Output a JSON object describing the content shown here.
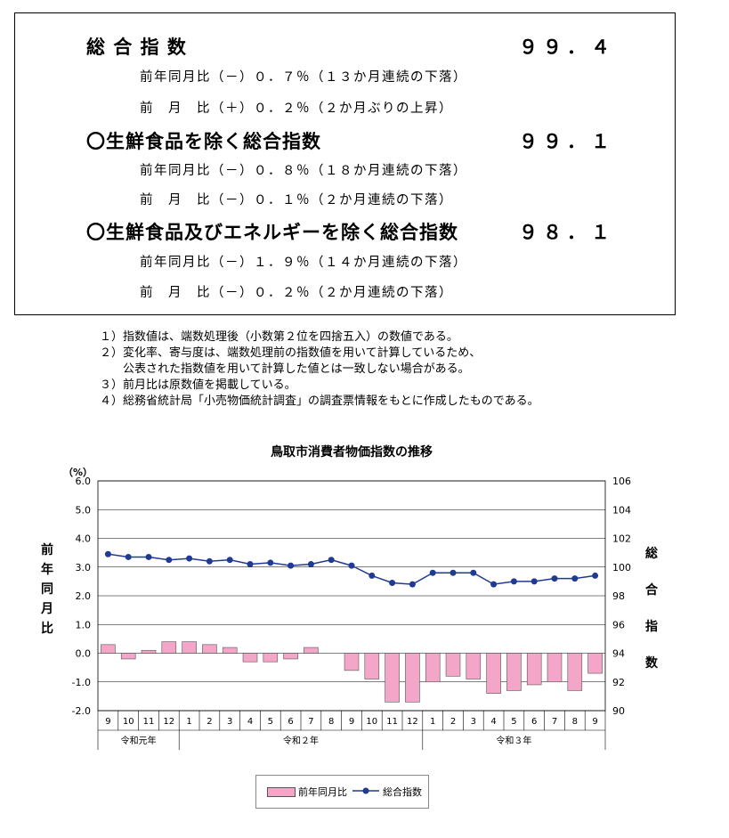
{
  "summary": {
    "blocks": [
      {
        "title": "総 合 指 数",
        "value": "９９．４",
        "lines": [
          "前年同月比（－）０．７％（１３か月連続の下落）",
          "前　月　比（＋）０．２％（２か月ぶりの上昇）"
        ]
      },
      {
        "title": "〇生鮮食品を除く総合指数",
        "value": "９９．１",
        "lines": [
          "前年同月比（－）０．８％（１８か月連続の下落）",
          "前　月　比（－）０．１％（２か月連続の下落）"
        ]
      },
      {
        "title": "〇生鮮食品及びエネルギーを除く総合指数",
        "value": "９８．１",
        "lines": [
          "前年同月比（－）１．９％（１４か月連続の下落）",
          "前　月　比（－）０．２％（２か月連続の下落）"
        ]
      }
    ]
  },
  "notes": [
    "１）指数値は、端数処理後（小数第２位を四捨五入）の数値である。",
    "２）変化率、寄与度は、端数処理前の指数値を用いて計算しているため、",
    "　　公表された指数値を用いて計算した値とは一致しない場合がある。",
    "３）前月比は原数値を掲載している。",
    "４）総務省統計局「小売物価統計調査」の調査票情報をもとに作成したものである。"
  ],
  "chart_data": {
    "type": "bar",
    "title": "鳥取市消費者物価指数の推移",
    "categories": [
      "9",
      "10",
      "11",
      "12",
      "1",
      "2",
      "3",
      "4",
      "5",
      "6",
      "7",
      "8",
      "9",
      "10",
      "11",
      "12",
      "1",
      "2",
      "3",
      "4",
      "5",
      "6",
      "7",
      "8",
      "9"
    ],
    "year_groups": [
      {
        "label": "令和元年",
        "count": 4
      },
      {
        "label": "令和２年",
        "count": 12
      },
      {
        "label": "令和３年",
        "count": 9
      }
    ],
    "left_axis": {
      "unit": "（%）",
      "label": "前年同月比",
      "ylim": [
        -2.0,
        6.0
      ],
      "ticks": [
        "6.0",
        "5.0",
        "4.0",
        "3.0",
        "2.0",
        "1.0",
        "0.0",
        "-1.0",
        "-2.0"
      ]
    },
    "right_axis": {
      "label": "総合指数",
      "ylim": [
        90,
        106
      ],
      "ticks": [
        "106",
        "104",
        "102",
        "100",
        "98",
        "96",
        "94",
        "92",
        "90"
      ]
    },
    "series": [
      {
        "name": "前年同月比",
        "type": "bar",
        "axis": "left",
        "color": "#F4A6C8",
        "values": [
          0.3,
          -0.2,
          0.1,
          0.4,
          0.4,
          0.3,
          0.2,
          -0.3,
          -0.3,
          -0.2,
          0.2,
          0.0,
          -0.6,
          -0.9,
          -1.7,
          -1.7,
          -1.0,
          -0.8,
          -0.9,
          -1.4,
          -1.3,
          -1.1,
          -1.0,
          -1.3,
          -0.7
        ]
      },
      {
        "name": "総合指数",
        "type": "line",
        "axis": "right",
        "color": "#1F3A93",
        "values": [
          100.9,
          100.7,
          100.7,
          100.5,
          100.6,
          100.4,
          100.5,
          100.2,
          100.3,
          100.1,
          100.2,
          100.5,
          100.1,
          99.4,
          98.9,
          98.8,
          99.6,
          99.6,
          99.6,
          98.8,
          99.0,
          99.0,
          99.2,
          99.2,
          99.4
        ]
      }
    ],
    "grid": true,
    "legend": "bottom-center"
  }
}
